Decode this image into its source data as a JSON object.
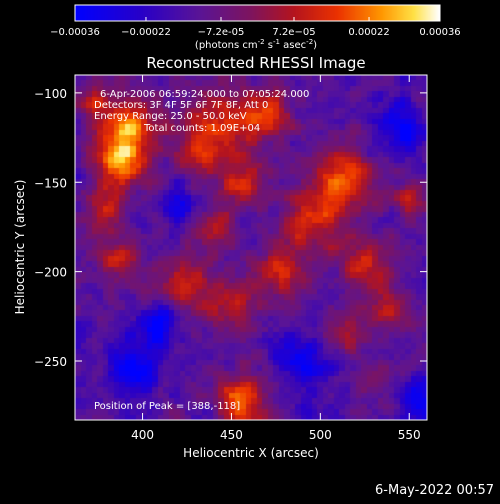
{
  "chart_data": {
    "type": "heatmap",
    "title": "Reconstructed RHESSI Image",
    "xlabel": "Heliocentric X (arcsec)",
    "ylabel": "Heliocentric Y (arcsec)",
    "xlim": [
      362,
      560
    ],
    "ylim": [
      -283,
      -90
    ],
    "xticks": [
      400,
      450,
      500,
      550
    ],
    "yticks": [
      -100,
      -150,
      -200,
      -250
    ],
    "colorbar": {
      "min": -0.00036,
      "max": 0.00036,
      "ticks": [
        {
          "value": -0.00036,
          "label": "-0.00036"
        },
        {
          "value": -0.00022,
          "label": "-0.00022"
        },
        {
          "value": -7.2e-05,
          "label": "-7.2e-05"
        },
        {
          "value": 7.2e-05,
          "label": "7.2e-05"
        },
        {
          "value": 0.00022,
          "label": "0.00022"
        },
        {
          "value": 0.00036,
          "label": "0.00036"
        }
      ],
      "unit_label": "(photons cm",
      "unit_sup1": "-2",
      "unit_mid": " s",
      "unit_sup2": "-1",
      "unit_end": " asec",
      "unit_sup3": "-2",
      "unit_close": ")"
    },
    "annotations": {
      "time_range": "6-Apr-2006 06:59:24.000 to 07:05:24.000",
      "detectors": "Detectors: 3F 4F 5F 6F 7F 8F, Att 0",
      "energy_range": "Energy Range: 25.0 - 50.0 keV",
      "counts": "Total counts: 1.09E+04",
      "peak_position": "Position of Peak = [388,-118]"
    },
    "intensity_sources": [
      {
        "x": 392,
        "y": -120,
        "w": 18,
        "level": 0.55
      },
      {
        "x": 388,
        "y": -140,
        "w": 14,
        "level": 0.45
      },
      {
        "x": 378,
        "y": -165,
        "w": 12,
        "level": 0.35
      },
      {
        "x": 385,
        "y": -192,
        "w": 12,
        "level": 0.3
      },
      {
        "x": 445,
        "y": -118,
        "w": 20,
        "level": 0.4
      },
      {
        "x": 470,
        "y": -112,
        "w": 14,
        "level": 0.35
      },
      {
        "x": 430,
        "y": -135,
        "w": 12,
        "level": 0.25
      },
      {
        "x": 455,
        "y": -150,
        "w": 14,
        "level": 0.35
      },
      {
        "x": 440,
        "y": -178,
        "w": 12,
        "level": 0.3
      },
      {
        "x": 425,
        "y": -205,
        "w": 16,
        "level": 0.35
      },
      {
        "x": 450,
        "y": -220,
        "w": 14,
        "level": 0.3
      },
      {
        "x": 512,
        "y": -148,
        "w": 18,
        "level": 0.5
      },
      {
        "x": 495,
        "y": -172,
        "w": 16,
        "level": 0.4
      },
      {
        "x": 478,
        "y": -200,
        "w": 16,
        "level": 0.35
      },
      {
        "x": 525,
        "y": -195,
        "w": 14,
        "level": 0.35
      },
      {
        "x": 538,
        "y": -222,
        "w": 12,
        "level": 0.35
      },
      {
        "x": 552,
        "y": -160,
        "w": 10,
        "level": 0.35
      },
      {
        "x": 515,
        "y": -235,
        "w": 12,
        "level": 0.3
      },
      {
        "x": 455,
        "y": -272,
        "w": 14,
        "level": 0.55
      },
      {
        "x": 528,
        "y": -262,
        "w": 10,
        "level": 0.2
      },
      {
        "x": 372,
        "y": -105,
        "w": 10,
        "level": 0.25
      },
      {
        "x": 408,
        "y": -230,
        "w": 12,
        "level": -0.35
      },
      {
        "x": 395,
        "y": -255,
        "w": 14,
        "level": -0.35
      },
      {
        "x": 545,
        "y": -120,
        "w": 14,
        "level": -0.3
      },
      {
        "x": 490,
        "y": -250,
        "w": 14,
        "level": -0.3
      },
      {
        "x": 560,
        "y": -270,
        "w": 14,
        "level": -0.3
      },
      {
        "x": 420,
        "y": -165,
        "w": 10,
        "level": -0.25
      }
    ]
  },
  "footer": {
    "date_stamp": "6-May-2022 00:57"
  }
}
